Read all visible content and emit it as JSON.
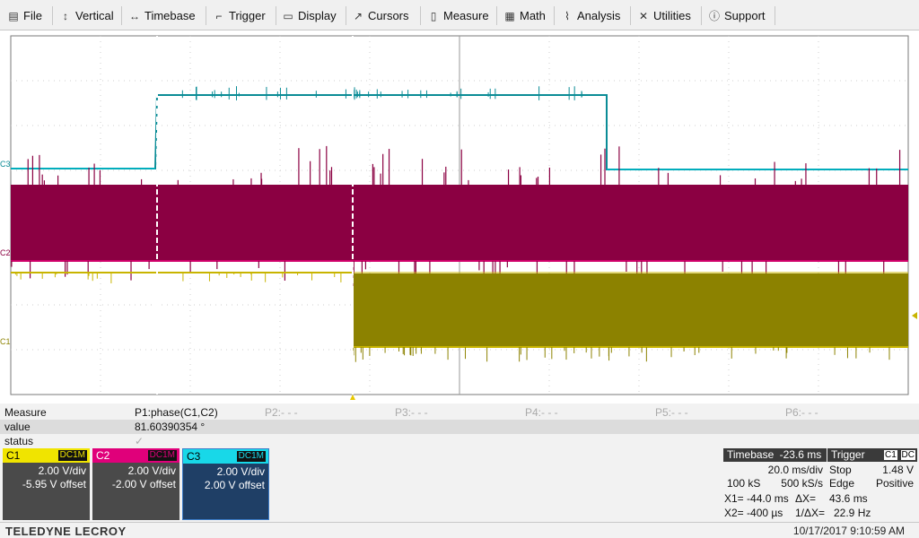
{
  "menu": {
    "items": [
      {
        "name": "file",
        "label": "File",
        "icon": "file-icon"
      },
      {
        "name": "vertical",
        "label": "Vertical",
        "icon": "vertical-arrows-icon"
      },
      {
        "name": "timebase",
        "label": "Timebase",
        "icon": "horizontal-arrows-icon"
      },
      {
        "name": "trigger",
        "label": "Trigger",
        "icon": "trigger-icon"
      },
      {
        "name": "display",
        "label": "Display",
        "icon": "display-icon"
      },
      {
        "name": "cursors",
        "label": "Cursors",
        "icon": "cursor-icon"
      },
      {
        "name": "measure",
        "label": "Measure",
        "icon": "measure-icon"
      },
      {
        "name": "math",
        "label": "Math",
        "icon": "calculator-icon"
      },
      {
        "name": "analysis",
        "label": "Analysis",
        "icon": "chart-icon"
      },
      {
        "name": "utilities",
        "label": "Utilities",
        "icon": "tools-icon"
      },
      {
        "name": "support",
        "label": "Support",
        "icon": "info-icon"
      }
    ]
  },
  "traces": {
    "labels": {
      "c3": "C3",
      "c2": "C2",
      "c1": "C1"
    },
    "colors": {
      "c1": "#c8b400",
      "c1_fill": "#8c8200",
      "c2": "#8b0042",
      "c2_line": "#d0006a",
      "c3": "#00b8c8",
      "c3_dark": "#0a8c96"
    }
  },
  "measure": {
    "headers": {
      "label": "Measure",
      "p1": "P1:phase(C1,C2)",
      "p2": "P2:- - -",
      "p3": "P3:- - -",
      "p4": "P4:- - -",
      "p5": "P5:- - -",
      "p6": "P6:- - -"
    },
    "value": {
      "label": "value",
      "p1": "81.60390354 °"
    },
    "status": {
      "label": "status",
      "p1": "✓"
    }
  },
  "channels": [
    {
      "id": "C1",
      "coupling": "DC1M",
      "vdiv": "2.00 V/div",
      "offset": "-5.95 V offset",
      "color": "#f0e400",
      "text_color": "#000"
    },
    {
      "id": "C2",
      "coupling": "DC1M",
      "vdiv": "2.00 V/div",
      "offset": "-2.00 V offset",
      "color": "#e0007a",
      "text_color": "#fff"
    },
    {
      "id": "C3",
      "coupling": "DC1M",
      "vdiv": "2.00 V/div",
      "offset": "2.00 V offset",
      "color": "#18d8e8",
      "text_color": "#000"
    }
  ],
  "timebase": {
    "title": "Timebase",
    "delay": "-23.6 ms",
    "per_div": "20.0 ms/div",
    "samples": "100 kS",
    "rate": "500 kS/s"
  },
  "trigger": {
    "title": "Trigger",
    "source": "C1",
    "coupling": "DC",
    "mode": "Stop",
    "level": "1.48 V",
    "type": "Edge",
    "slope": "Positive"
  },
  "cursors": {
    "x1": "X1= -44.0 ms",
    "dx_label": "ΔX=",
    "dx": "43.6 ms",
    "x2": "X2= -400 µs",
    "inv_label": "1/ΔX=",
    "inv": "22.9 Hz"
  },
  "footer": {
    "brand": "TELEDYNE LECROY",
    "datetime": "10/17/2017 9:10:59 AM"
  }
}
